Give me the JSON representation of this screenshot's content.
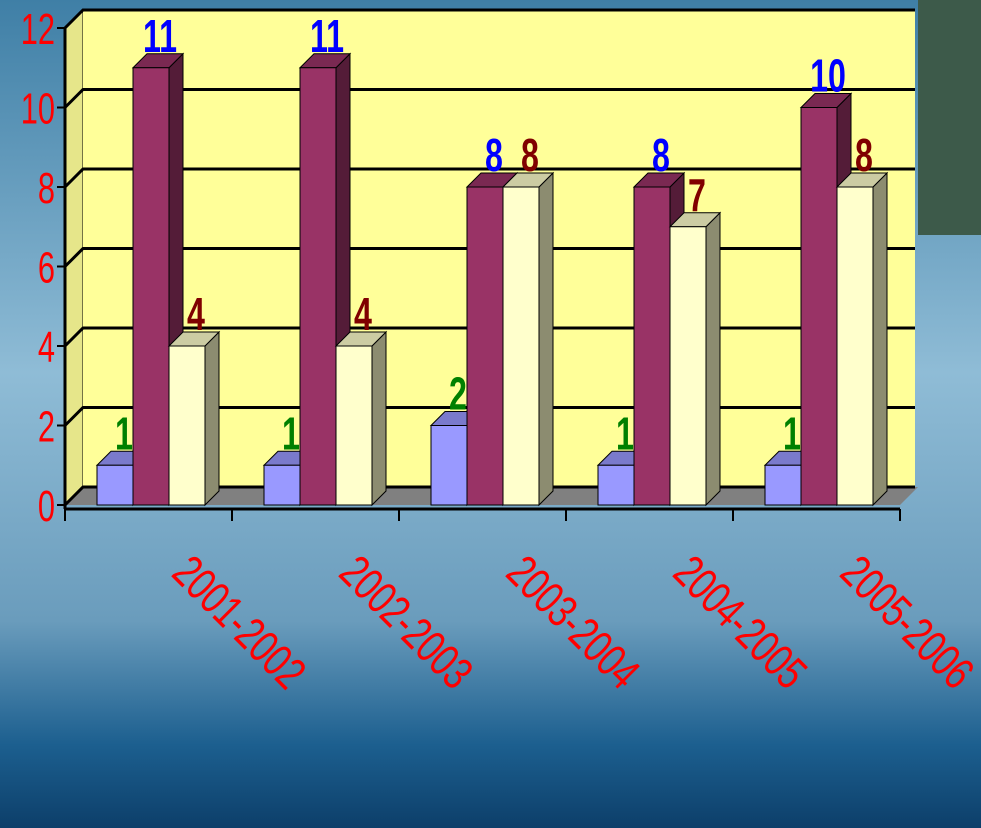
{
  "chart_data": {
    "type": "bar3d",
    "categories": [
      "2001-2002",
      "2002-2003",
      "2003-2004",
      "2004-2005",
      "2005-2006"
    ],
    "series": [
      {
        "color": "#9999ff",
        "label_color": "#008000",
        "values": [
          1,
          1,
          2,
          1,
          1
        ]
      },
      {
        "color": "#993366",
        "label_color": "#0000ff",
        "values": [
          11,
          11,
          8,
          8,
          10
        ]
      },
      {
        "color": "#ffffcc",
        "label_color": "#800000",
        "values": [
          4,
          4,
          8,
          7,
          8
        ]
      }
    ],
    "ylim": [
      0,
      12
    ],
    "yticks": [
      0,
      2,
      4,
      6,
      8,
      10,
      12
    ],
    "grid": true,
    "wall_color": "#ffff99",
    "floor_color": "#808080",
    "tick_label_color": "#ff0000"
  }
}
